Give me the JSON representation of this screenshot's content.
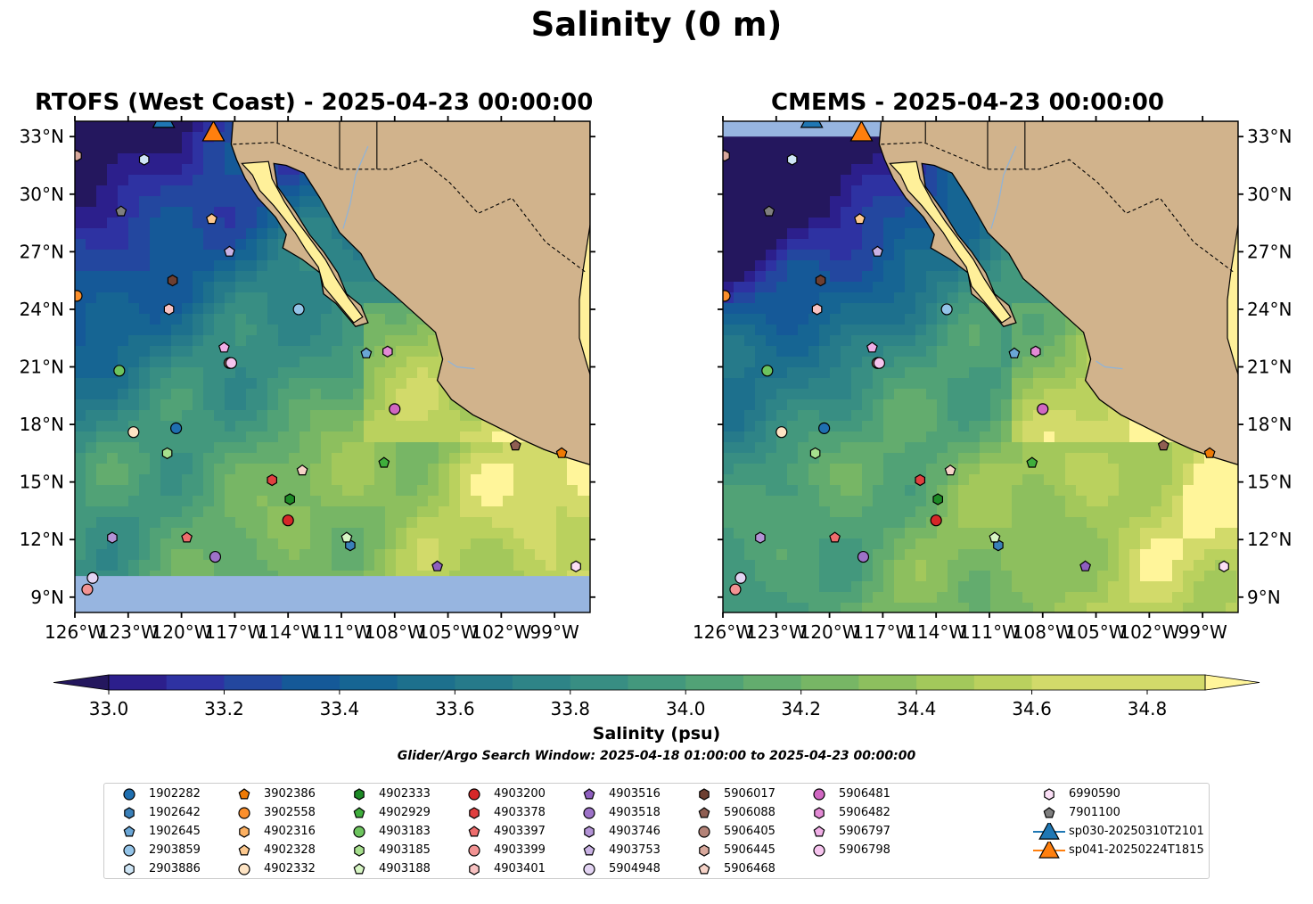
{
  "figure": {
    "title": "Salinity (0 m)",
    "colorbar_label": "Salinity (psu)",
    "search_window": "Glider/Argo Search Window: 2025-04-18 01:00:00 to 2025-04-23 00:00:00"
  },
  "panels": [
    {
      "title": "RTOFS (West Coast) - 2025-04-23 00:00:00"
    },
    {
      "title": "CMEMS - 2025-04-23 00:00:00"
    }
  ],
  "axes": {
    "lon_ticks": [
      "126°W",
      "123°W",
      "120°W",
      "117°W",
      "114°W",
      "111°W",
      "108°W",
      "105°W",
      "102°W",
      "99°W"
    ],
    "lat_ticks": [
      "33°N",
      "30°N",
      "27°N",
      "24°N",
      "21°N",
      "18°N",
      "15°N",
      "12°N",
      "9°N"
    ],
    "lon_values": [
      -126,
      -123,
      -120,
      -117,
      -114,
      -111,
      -108,
      -105,
      -102,
      -99
    ],
    "lat_values": [
      33,
      30,
      27,
      24,
      21,
      18,
      15,
      12,
      9
    ],
    "extent": {
      "lon": [
        -126,
        -97
      ],
      "lat": [
        8.2,
        33.8
      ]
    }
  },
  "chart_data": {
    "type": "heatmap",
    "colorbar": {
      "ticks": [
        "33.0",
        "33.2",
        "33.4",
        "33.6",
        "33.8",
        "34.0",
        "34.2",
        "34.4",
        "34.6",
        "34.8"
      ],
      "range": [
        32.9,
        34.9
      ],
      "step": 0.1,
      "colors": [
        "#24175e",
        "#2c1f8c",
        "#2e32a2",
        "#23479f",
        "#155998",
        "#166593",
        "#1d708d",
        "#267a8a",
        "#2e8487",
        "#388e83",
        "#43987d",
        "#51a276",
        "#63ac6e",
        "#77b665",
        "#8dbf5e",
        "#a3c85b",
        "#bad15e",
        "#d2da6a",
        "#fff59a"
      ]
    }
  },
  "legend": [
    {
      "label": "1902282",
      "shape": "circle",
      "color": "#1f6fb0"
    },
    {
      "label": "1902642",
      "shape": "hexagon",
      "color": "#3a80b9"
    },
    {
      "label": "1902645",
      "shape": "pentagon",
      "color": "#6aa6d6"
    },
    {
      "label": "2903859",
      "shape": "circle",
      "color": "#94c4e8"
    },
    {
      "label": "2903886",
      "shape": "hexagon",
      "color": "#cfe6f6"
    },
    {
      "label": "3902386",
      "shape": "pentagon",
      "color": "#ef7a05"
    },
    {
      "label": "3902558",
      "shape": "circle",
      "color": "#fb8f2c"
    },
    {
      "label": "4902316",
      "shape": "hexagon",
      "color": "#fcb061"
    },
    {
      "label": "4902328",
      "shape": "pentagon",
      "color": "#fdc98f"
    },
    {
      "label": "4902332",
      "shape": "circle",
      "color": "#fee4c4"
    },
    {
      "label": "4902333",
      "shape": "hexagon",
      "color": "#1d8a26"
    },
    {
      "label": "4902929",
      "shape": "pentagon",
      "color": "#3fae3c"
    },
    {
      "label": "4903183",
      "shape": "circle",
      "color": "#6dc45e"
    },
    {
      "label": "4903185",
      "shape": "hexagon",
      "color": "#a6df8d"
    },
    {
      "label": "4903188",
      "shape": "pentagon",
      "color": "#d7f6c4"
    },
    {
      "label": "4903200",
      "shape": "circle",
      "color": "#d62728"
    },
    {
      "label": "4903378",
      "shape": "hexagon",
      "color": "#e04040"
    },
    {
      "label": "4903397",
      "shape": "pentagon",
      "color": "#ee6d6d"
    },
    {
      "label": "4903399",
      "shape": "circle",
      "color": "#f29393"
    },
    {
      "label": "4903401",
      "shape": "hexagon",
      "color": "#f8c2c2"
    },
    {
      "label": "4903516",
      "shape": "pentagon",
      "color": "#8e5fbf"
    },
    {
      "label": "4903518",
      "shape": "circle",
      "color": "#9d72c8"
    },
    {
      "label": "4903746",
      "shape": "hexagon",
      "color": "#b393d6"
    },
    {
      "label": "4903753",
      "shape": "pentagon",
      "color": "#c9b2e4"
    },
    {
      "label": "5904948",
      "shape": "circle",
      "color": "#e3d4f3"
    },
    {
      "label": "5906017",
      "shape": "hexagon",
      "color": "#6d3f31"
    },
    {
      "label": "5906088",
      "shape": "pentagon",
      "color": "#8f5e52"
    },
    {
      "label": "5906405",
      "shape": "circle",
      "color": "#b48378"
    },
    {
      "label": "5906445",
      "shape": "hexagon",
      "color": "#d8a89c"
    },
    {
      "label": "5906468",
      "shape": "pentagon",
      "color": "#f6d3c8"
    },
    {
      "label": "5906481",
      "shape": "circle",
      "color": "#d067c2"
    },
    {
      "label": "5906482",
      "shape": "hexagon",
      "color": "#e38ad5"
    },
    {
      "label": "5906797",
      "shape": "pentagon",
      "color": "#f0aee6"
    },
    {
      "label": "5906798",
      "shape": "circle",
      "color": "#f6c4ee"
    },
    {
      "label": "6990590",
      "shape": "hexagon",
      "color": "#fbdff6"
    },
    {
      "label": "7901100",
      "shape": "pentagon",
      "color": "#7f7f7f"
    },
    {
      "label": "sp030-20250310T2101",
      "shape": "glider",
      "color": "#1f77b4"
    },
    {
      "label": "sp041-20250224T1815",
      "shape": "glider",
      "color": "#ff7f0e"
    }
  ],
  "floats": [
    {
      "id": "1902282",
      "lon": -120.3,
      "lat": 17.8
    },
    {
      "id": "1902642",
      "lon": -110.5,
      "lat": 11.7
    },
    {
      "id": "1902645",
      "lon": -109.6,
      "lat": 21.7
    },
    {
      "id": "2903859",
      "lon": -113.4,
      "lat": 24.0
    },
    {
      "id": "2903886",
      "lon": -122.1,
      "lat": 31.8
    },
    {
      "id": "3902386",
      "lon": -98.6,
      "lat": 16.5
    },
    {
      "id": "3902558",
      "lon": -125.9,
      "lat": 24.7
    },
    {
      "id": "4902316",
      "lon": -117.3,
      "lat": 21.2
    },
    {
      "id": "4902328",
      "lon": -118.3,
      "lat": 28.7
    },
    {
      "id": "4902332",
      "lon": -122.7,
      "lat": 17.6
    },
    {
      "id": "4902333",
      "lon": -113.9,
      "lat": 14.1
    },
    {
      "id": "4902929",
      "lon": -108.6,
      "lat": 16.0
    },
    {
      "id": "4903183",
      "lon": -123.5,
      "lat": 20.8
    },
    {
      "id": "4903185",
      "lon": -120.8,
      "lat": 16.5
    },
    {
      "id": "4903188",
      "lon": -110.7,
      "lat": 12.1
    },
    {
      "id": "4903200",
      "lon": -114.0,
      "lat": 13.0
    },
    {
      "id": "4903378",
      "lon": -114.9,
      "lat": 15.1
    },
    {
      "id": "4903397",
      "lon": -119.7,
      "lat": 12.1
    },
    {
      "id": "4903399",
      "lon": -125.3,
      "lat": 9.4
    },
    {
      "id": "4903401",
      "lon": -120.7,
      "lat": 24.0
    },
    {
      "id": "4903516",
      "lon": -105.6,
      "lat": 10.6
    },
    {
      "id": "4903518",
      "lon": -118.1,
      "lat": 11.1
    },
    {
      "id": "4903746",
      "lon": -123.9,
      "lat": 12.1
    },
    {
      "id": "4903753",
      "lon": -117.3,
      "lat": 27.0
    },
    {
      "id": "5904948",
      "lon": -125.0,
      "lat": 10.0
    },
    {
      "id": "5906017",
      "lon": -120.5,
      "lat": 25.5
    },
    {
      "id": "5906088",
      "lon": -101.2,
      "lat": 16.9
    },
    {
      "id": "5906405",
      "lon": -117.3,
      "lat": 21.2
    },
    {
      "id": "5906445",
      "lon": -125.9,
      "lat": 32.0
    },
    {
      "id": "5906468",
      "lon": -113.2,
      "lat": 15.6
    },
    {
      "id": "5906481",
      "lon": -108.0,
      "lat": 18.8
    },
    {
      "id": "5906482",
      "lon": -108.4,
      "lat": 21.8
    },
    {
      "id": "5906797",
      "lon": -117.6,
      "lat": 22.0
    },
    {
      "id": "5906798",
      "lon": -117.2,
      "lat": 21.2
    },
    {
      "id": "6990590",
      "lon": -97.8,
      "lat": 10.6
    },
    {
      "id": "7901100",
      "lon": -123.4,
      "lat": 29.1
    }
  ],
  "gliders": [
    {
      "id": "sp030-20250310T2101",
      "lon": -121.0,
      "lat": 33.9
    },
    {
      "id": "sp041-20250224T1815",
      "lon": -118.2,
      "lat": 33.2
    }
  ]
}
